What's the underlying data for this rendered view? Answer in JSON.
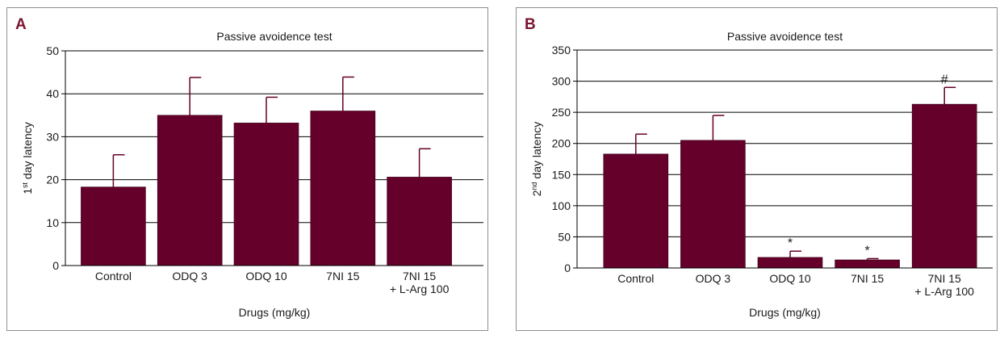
{
  "colors": {
    "bar": "#65002a",
    "grid": "#000000",
    "frame": "#8f8f8f",
    "panel_label": "#7a1530"
  },
  "chart_data": [
    {
      "type": "bar",
      "panel_label": "A",
      "title": "Passive avoidence test",
      "xlabel": "Drugs (mg/kg)",
      "ylabel_pre": "1",
      "ylabel_sup": "st",
      "ylabel_post": " day latency",
      "categories": [
        [
          "Control"
        ],
        [
          "ODQ 3"
        ],
        [
          "ODQ 10"
        ],
        [
          "7NI 15"
        ],
        [
          "7NI 15",
          "+ L-Arg 100"
        ]
      ],
      "values": [
        18.3,
        35.0,
        33.2,
        36.0,
        20.6
      ],
      "errors": [
        7.5,
        8.8,
        6.0,
        7.9,
        6.6
      ],
      "annotations": [
        "",
        "",
        "",
        "",
        ""
      ],
      "ylim": [
        0,
        50
      ],
      "yticks": [
        0,
        10,
        20,
        30,
        40,
        50
      ],
      "grid": true
    },
    {
      "type": "bar",
      "panel_label": "B",
      "title": "Passive avoidence test",
      "xlabel": "Drugs (mg/kg)",
      "ylabel_pre": "2",
      "ylabel_sup": "nd",
      "ylabel_post": " day latency",
      "categories": [
        [
          "Control"
        ],
        [
          "ODQ 3"
        ],
        [
          "ODQ 10"
        ],
        [
          "7NI 15"
        ],
        [
          "7NI 15",
          "+ L-Arg 100"
        ]
      ],
      "values": [
        183,
        205,
        17,
        13,
        263
      ],
      "errors": [
        32,
        40,
        10,
        2,
        27
      ],
      "annotations": [
        "",
        "",
        "*",
        "*",
        "#"
      ],
      "ylim": [
        0,
        350
      ],
      "yticks": [
        0,
        50,
        100,
        150,
        200,
        250,
        300,
        350
      ],
      "grid": true
    }
  ]
}
